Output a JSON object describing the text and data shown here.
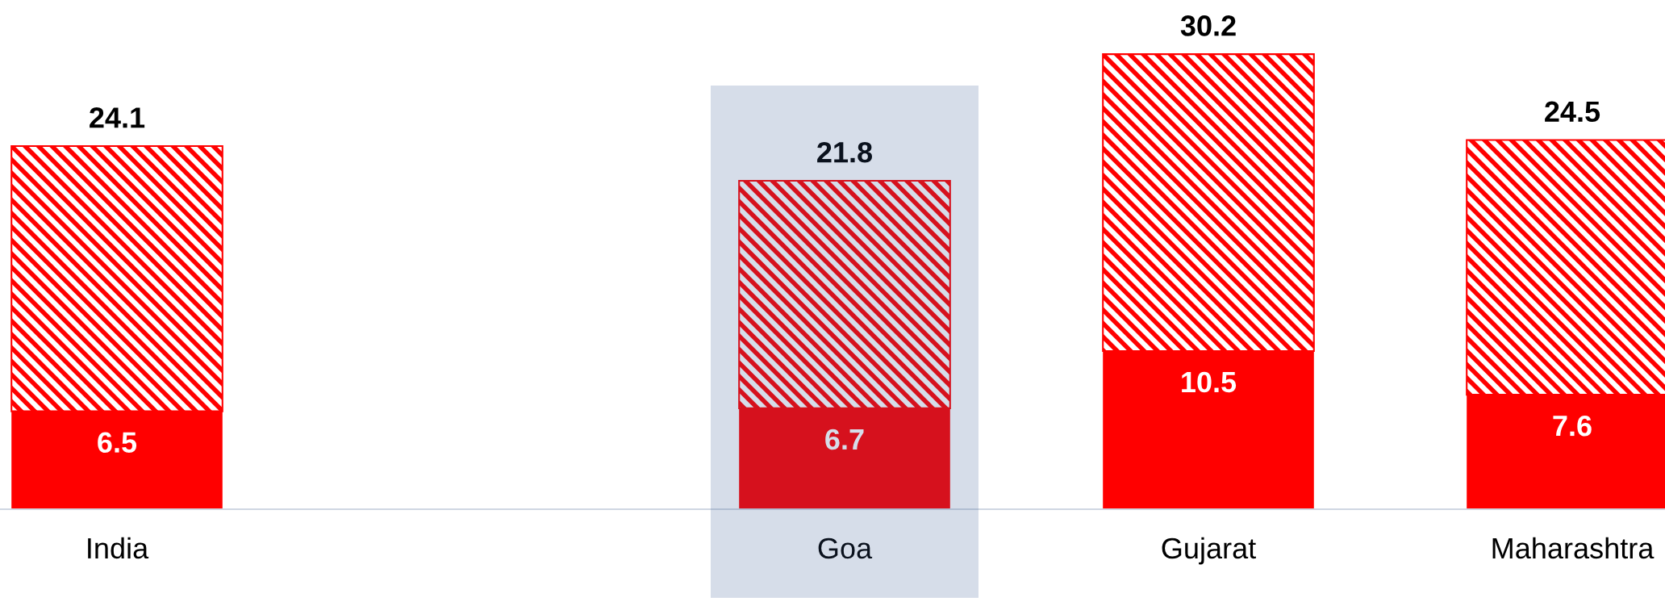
{
  "chart_data": {
    "type": "bar",
    "stacked": true,
    "categories": [
      "India",
      null,
      "Goa",
      "Gujarat",
      "Maharashtra"
    ],
    "series": [
      {
        "color": "#ff0000",
        "values": [
          6.5,
          null,
          6.7,
          10.5,
          7.6
        ],
        "value_labels": [
          "6.5",
          null,
          "6.7",
          "10.5",
          "7.6"
        ]
      },
      {
        "color": "#ff0000",
        "values": [
          17.6,
          null,
          15.1,
          19.7,
          16.9
        ]
      }
    ],
    "totals": [
      "24.1",
      null,
      "21.8",
      "30.2",
      "24.5"
    ],
    "tick_labels": "x",
    "bands": [
      {
        "axis": "x",
        "from": "Goa",
        "to": "Goa",
        "color": "#d6dde9"
      }
    ]
  }
}
